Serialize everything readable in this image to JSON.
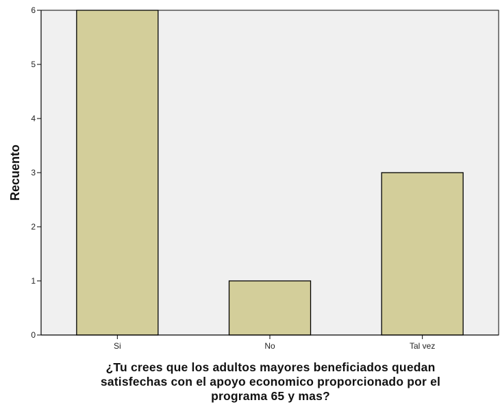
{
  "chart_data": {
    "type": "bar",
    "categories": [
      "Si",
      "No",
      "Tal vez"
    ],
    "values": [
      6,
      1,
      3
    ],
    "ylabel": "Recuento",
    "xlabel_lines": [
      "¿Tu crees que los adultos mayores beneficiados quedan",
      "satisfechas con el apoyo economico proporcionado por el",
      "programa 65 y mas?"
    ],
    "ylim": [
      0,
      6
    ],
    "yticks": [
      0,
      1,
      2,
      3,
      4,
      5,
      6
    ],
    "grid": false,
    "colors": {
      "bar_fill": "#d3ce9a",
      "bar_stroke": "#000000",
      "plot_background": "#f0f0f0",
      "axis": "#000000"
    }
  }
}
